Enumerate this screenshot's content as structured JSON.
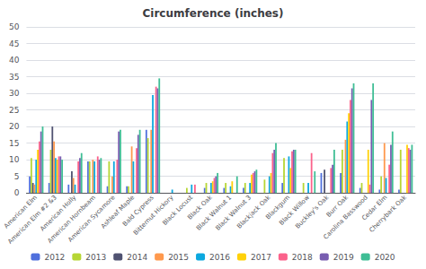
{
  "chart_data": {
    "type": "bar",
    "title": "Circumference (inches)",
    "categories": [
      "American Elm",
      "American Elm #2 &3",
      "American Holly",
      "American Hornbeam",
      "American Sycamore",
      "Ashleaf Maple",
      "Bald Cypress",
      "Bitternut Hickory",
      "Black Locust",
      "Black Oak",
      "Black Walnut 1",
      "Black Walnut 3",
      "Blackjack Oak",
      "Blackgum",
      "Black Willow",
      "Buckley's Oak",
      "Burr Oak",
      "Carolina Basswood",
      "Cedar Elm",
      "Cherrybark Oak"
    ],
    "series": [
      {
        "name": "2012",
        "values": [
          5,
          3,
          2.5,
          9.5,
          2,
          2,
          19,
          0,
          0,
          1.5,
          1.5,
          1.5,
          0,
          3,
          0,
          6,
          6,
          1.5,
          1,
          1
        ]
      },
      {
        "name": "2013",
        "values": [
          10.5,
          13,
          0,
          9.5,
          9.5,
          2,
          16.5,
          0,
          1.5,
          3,
          3,
          3,
          4,
          10.5,
          3,
          0,
          13,
          3,
          5,
          13
        ]
      },
      {
        "name": "2014",
        "values": [
          3,
          20,
          6.5,
          0,
          0,
          0,
          0,
          0,
          0,
          0,
          0,
          0,
          0,
          0,
          0,
          7,
          0,
          0,
          0,
          0
        ]
      },
      {
        "name": "2015",
        "values": [
          2.5,
          15.5,
          4.5,
          10,
          5,
          14,
          19,
          0,
          0,
          0,
          0,
          0,
          0,
          0,
          0,
          0,
          16,
          0,
          15,
          0
        ]
      },
      {
        "name": "2016",
        "values": [
          10,
          10.5,
          2.5,
          9.5,
          9.5,
          9.5,
          29.5,
          1,
          2.5,
          3,
          2,
          3,
          5,
          11,
          3,
          0,
          21.5,
          0,
          4.5,
          0
        ]
      },
      {
        "name": "2017",
        "values": [
          13,
          10,
          0,
          0,
          0,
          0,
          0,
          0,
          0,
          3.5,
          3.5,
          5.5,
          6,
          7.5,
          0,
          0,
          24,
          13,
          0,
          14.5
        ]
      },
      {
        "name": "2018",
        "values": [
          15.5,
          11,
          9.5,
          11,
          10,
          13.5,
          32,
          0,
          2.5,
          4.5,
          0,
          6,
          12,
          12.5,
          12,
          7.5,
          28,
          2.5,
          8.5,
          13.5
        ]
      },
      {
        "name": "2019",
        "values": [
          18.5,
          11,
          10.5,
          10,
          18.5,
          17.5,
          31.5,
          0,
          0,
          5,
          0,
          6.5,
          13,
          13,
          0,
          8.5,
          31.5,
          28,
          14.5,
          13
        ]
      },
      {
        "name": "2020",
        "values": [
          20,
          10,
          12,
          10.5,
          19,
          19,
          34.5,
          0,
          0,
          6,
          5,
          7,
          15,
          13,
          6.5,
          13,
          33,
          33,
          18.5,
          14.5
        ]
      }
    ],
    "ylim": [
      0,
      50
    ],
    "yticks": [
      0,
      5,
      10,
      15,
      20,
      25,
      30,
      35,
      40,
      45,
      50
    ],
    "grid": true,
    "legend": "bottom"
  }
}
